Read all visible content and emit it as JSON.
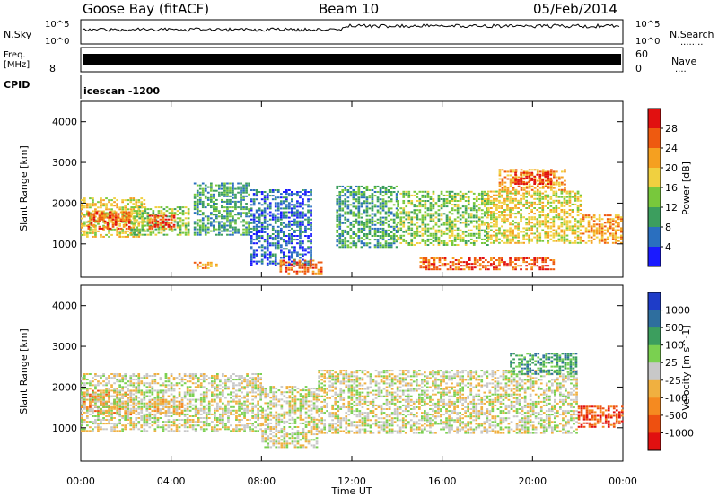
{
  "header": {
    "station": "Goose Bay (fitACF)",
    "beam": "Beam 10",
    "date": "05/Feb/2014"
  },
  "nsky_panel": {
    "left_label": "N.Sky",
    "right_label": "N.Search",
    "right_sub": "........",
    "y_ticks": [
      "10^5",
      "10^0"
    ]
  },
  "freq_panel": {
    "left_label_1": "Freq.",
    "left_label_2": "[MHz]",
    "left_tick": "8",
    "right_ticks": [
      "60",
      "0"
    ],
    "right_label": "Nave",
    "right_sub": "....",
    "cpid_label": "CPID",
    "cpid_name": "icescan -1200"
  },
  "chart_data": [
    {
      "type": "heatmap",
      "name": "Power",
      "x_label": "Time UT",
      "x_ticks": [
        "00:00",
        "04:00",
        "08:00",
        "12:00",
        "16:00",
        "20:00",
        "00:00"
      ],
      "x_range_hours": [
        0,
        24
      ],
      "y_label": "Slant Range [km]",
      "y_ticks": [
        1000,
        2000,
        3000,
        4000
      ],
      "y_range_km": [
        180,
        4500
      ],
      "colorbar_label": "Power [dB]",
      "colorbar_ticks": [
        "4",
        "8",
        "12",
        "16",
        "20",
        "24",
        "28"
      ],
      "colorbar_colors": [
        "#1a1aff",
        "#2a6fbf",
        "#3c9e5e",
        "#78c83c",
        "#f0d040",
        "#f5a020",
        "#ee5a10",
        "#e11010"
      ],
      "regions": [
        {
          "t0": 0.0,
          "t1": 2.8,
          "r0": 1150,
          "r1": 2100,
          "level": 4
        },
        {
          "t0": 0.3,
          "t1": 2.2,
          "r0": 1350,
          "r1": 1800,
          "level": 6
        },
        {
          "t0": 2.2,
          "t1": 4.8,
          "r0": 1200,
          "r1": 1900,
          "level": 3
        },
        {
          "t0": 3.0,
          "t1": 4.2,
          "r0": 1350,
          "r1": 1700,
          "level": 6
        },
        {
          "t0": 5.0,
          "t1": 7.5,
          "r0": 1200,
          "r1": 2500,
          "level": 2
        },
        {
          "t0": 7.5,
          "t1": 10.2,
          "r0": 450,
          "r1": 2300,
          "level": 1
        },
        {
          "t0": 11.3,
          "t1": 14.0,
          "r0": 900,
          "r1": 2400,
          "level": 2
        },
        {
          "t0": 14.0,
          "t1": 18.0,
          "r0": 950,
          "r1": 2300,
          "level": 3
        },
        {
          "t0": 18.0,
          "t1": 22.2,
          "r0": 1000,
          "r1": 2300,
          "level": 4
        },
        {
          "t0": 18.5,
          "t1": 21.5,
          "r0": 2300,
          "r1": 2800,
          "level": 5
        },
        {
          "t0": 19.2,
          "t1": 20.8,
          "r0": 2450,
          "r1": 2750,
          "level": 7
        },
        {
          "t0": 22.2,
          "t1": 24.0,
          "r0": 1000,
          "r1": 1700,
          "level": 5
        },
        {
          "t0": 15.0,
          "t1": 21.0,
          "r0": 350,
          "r1": 650,
          "level": 6
        },
        {
          "t0": 5.0,
          "t1": 6.0,
          "r0": 380,
          "r1": 520,
          "level": 5
        },
        {
          "t0": 8.8,
          "t1": 10.6,
          "r0": 250,
          "r1": 600,
          "level": 6
        }
      ]
    },
    {
      "type": "heatmap",
      "name": "Velocity",
      "x_label": "Time UT",
      "x_ticks": [
        "00:00",
        "04:00",
        "08:00",
        "12:00",
        "16:00",
        "20:00",
        "00:00"
      ],
      "x_range_hours": [
        0,
        24
      ],
      "y_label": "Slant Range [km]",
      "y_ticks": [
        1000,
        2000,
        3000,
        4000
      ],
      "y_range_km": [
        180,
        4500
      ],
      "colorbar_label": "Velocity [m s^-1]",
      "colorbar_ticks": [
        "1000",
        "500",
        "100",
        "25",
        "-25",
        "-100",
        "-500",
        "-1000"
      ],
      "colorbar_colors": [
        "#1e3cc8",
        "#2e6e9e",
        "#3c9e5e",
        "#7ad050",
        "#c8c8c8",
        "#f0b040",
        "#f58a20",
        "#ee5010",
        "#e11010"
      ],
      "regions": [
        {
          "t0": 0.0,
          "t1": 2.5,
          "r0": 1300,
          "r1": 1900,
          "level": 6
        },
        {
          "t0": 0.0,
          "t1": 8.0,
          "r0": 900,
          "r1": 2300,
          "level": 4
        },
        {
          "t0": 8.0,
          "t1": 10.5,
          "r0": 500,
          "r1": 2000,
          "level": 4
        },
        {
          "t0": 10.5,
          "t1": 22.0,
          "r0": 850,
          "r1": 2400,
          "level": 4
        },
        {
          "t0": 19.0,
          "t1": 22.0,
          "r0": 2300,
          "r1": 2800,
          "level": 2
        },
        {
          "t0": 22.0,
          "t1": 24.0,
          "r0": 1000,
          "r1": 1500,
          "level": 7
        },
        {
          "t0": 3.0,
          "t1": 4.5,
          "r0": 1300,
          "r1": 1700,
          "level": 5
        }
      ]
    }
  ]
}
